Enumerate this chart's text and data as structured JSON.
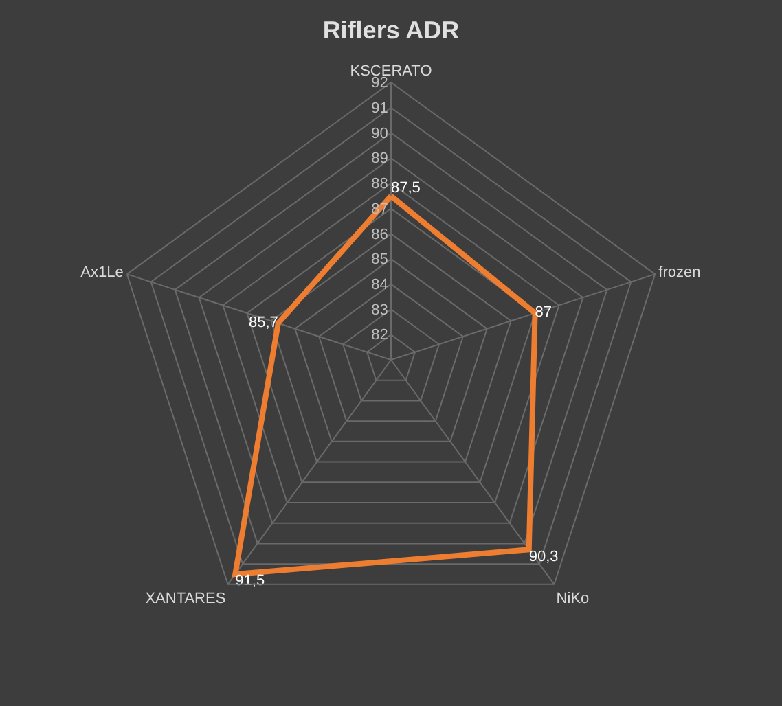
{
  "chart_data": {
    "type": "radar",
    "title": "Riflers ADR",
    "categories": [
      "KSCERATO",
      "frozen",
      "NiKo",
      "XANTARES",
      "Ax1Le"
    ],
    "series": [
      {
        "color": "#ed7d31",
        "values": [
          87.5,
          87,
          90.3,
          91.5,
          85.7
        ],
        "value_labels": [
          "87,5",
          "87",
          "90,3",
          "91,5",
          "85,7"
        ]
      }
    ],
    "ylim": [
      81,
      92
    ],
    "yticks": [
      82,
      83,
      84,
      85,
      86,
      87,
      88,
      89,
      90,
      91,
      92
    ],
    "grid": true,
    "legend": false,
    "marker": "none",
    "line_style": "solid"
  }
}
